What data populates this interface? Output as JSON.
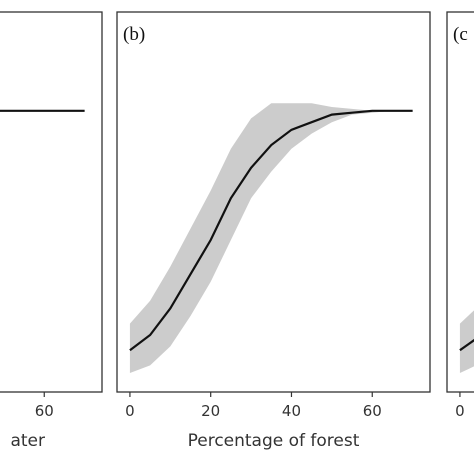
{
  "chart_data": [
    {
      "type": "line",
      "x_label": "ater",
      "x": [
        0,
        70
      ],
      "values": [
        0.74,
        0.74
      ],
      "color": "#111111",
      "xlim": [
        -3.2,
        74.3
      ],
      "ylim": [
        0,
        1
      ],
      "xticks": [
        60
      ]
    },
    {
      "type": "line",
      "panel_label": "(b)",
      "x_label": "Percentage of forest",
      "x": [
        0,
        5,
        10,
        15,
        20,
        25,
        30,
        35,
        40,
        45,
        50,
        55,
        60,
        65,
        70
      ],
      "values": [
        0.11,
        0.15,
        0.22,
        0.31,
        0.4,
        0.51,
        0.59,
        0.65,
        0.69,
        0.71,
        0.73,
        0.735,
        0.74,
        0.74,
        0.74
      ],
      "band_lower": [
        0.05,
        0.07,
        0.12,
        0.2,
        0.29,
        0.4,
        0.51,
        0.58,
        0.64,
        0.68,
        0.71,
        0.73,
        0.735,
        0.74,
        0.74
      ],
      "band_upper": [
        0.18,
        0.24,
        0.33,
        0.43,
        0.53,
        0.64,
        0.72,
        0.76,
        0.76,
        0.76,
        0.75,
        0.745,
        0.74,
        0.74,
        0.74
      ],
      "color": "#111111",
      "band_color": "#cccccc",
      "xlim": [
        -3.2,
        74.3
      ],
      "ylim": [
        0,
        1
      ],
      "xticks": [
        0,
        20,
        40,
        60
      ]
    },
    {
      "type": "line",
      "panel_label": "(c",
      "x": [
        0,
        2,
        4
      ],
      "values": [
        0.11,
        0.125,
        0.14
      ],
      "band_lower": [
        0.05,
        0.06,
        0.07
      ],
      "band_upper": [
        0.18,
        0.2,
        0.22
      ],
      "color": "#111111",
      "band_color": "#cccccc",
      "xlim": [
        -3.2,
        74.3
      ],
      "ylim": [
        0,
        1
      ],
      "xticks": [
        0
      ]
    }
  ]
}
